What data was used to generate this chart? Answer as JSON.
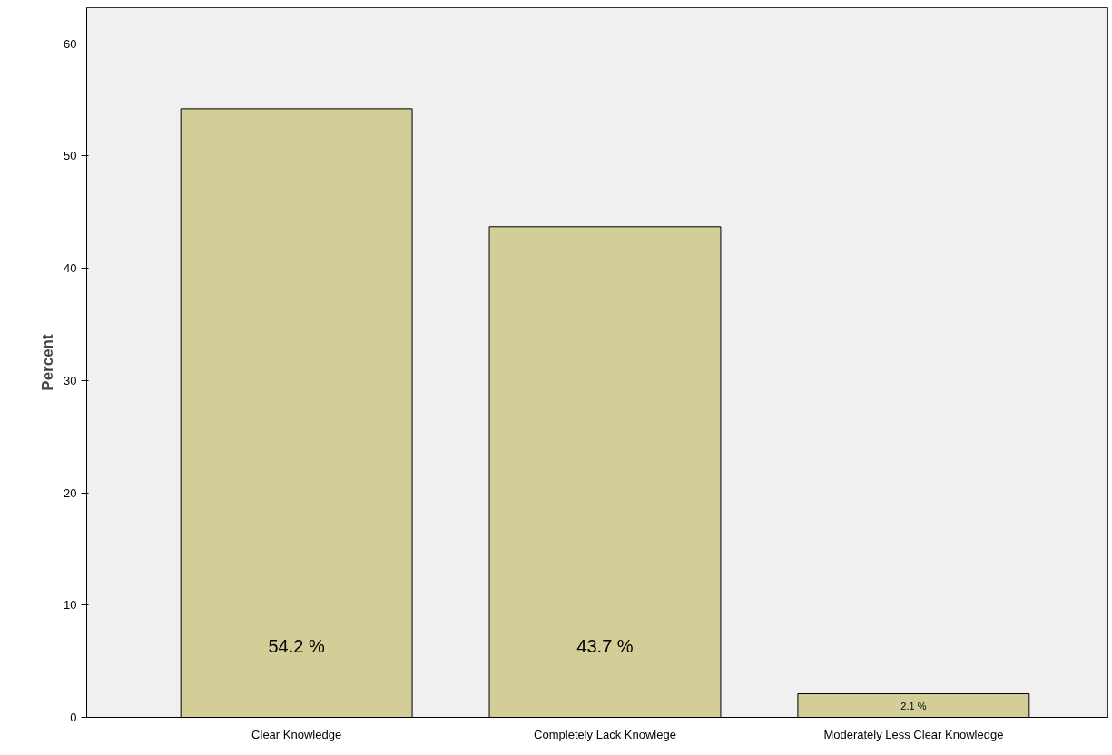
{
  "chart_data": {
    "type": "bar",
    "ylabel": "Percent",
    "categories": [
      "Clear Knowledge",
      "Completely Lack Knowlege",
      "Moderately Less Clear Knowledge"
    ],
    "values": [
      54.2,
      43.7,
      2.1
    ],
    "value_labels": [
      "54.2 %",
      "43.7 %",
      "2.1 %"
    ],
    "color": "#d3ce97",
    "ylim": [
      0,
      63.2
    ],
    "yticks": [
      0,
      10,
      20,
      30,
      40,
      50,
      60
    ],
    "grid": false
  }
}
